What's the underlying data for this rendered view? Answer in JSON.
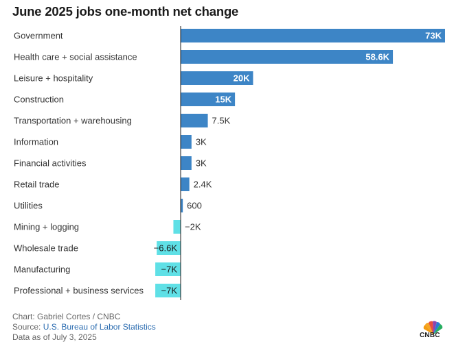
{
  "chart_data": {
    "type": "bar",
    "orientation": "horizontal",
    "title": "June 2025 jobs one-month net change",
    "categories": [
      "Government",
      "Health care + social assistance",
      "Leisure + hospitality",
      "Construction",
      "Transportation + warehousing",
      "Information",
      "Financial activities",
      "Retail trade",
      "Utilities",
      "Mining + logging",
      "Wholesale trade",
      "Manufacturing",
      "Professional + business services"
    ],
    "values": [
      73000,
      58600,
      20000,
      15000,
      7500,
      3000,
      3000,
      2400,
      600,
      -2000,
      -6600,
      -7000,
      -7000
    ],
    "value_labels": [
      "73K",
      "58.6K",
      "20K",
      "15K",
      "7.5K",
      "3K",
      "3K",
      "2.4K",
      "600",
      "−2K",
      "−6.6K",
      "−7K",
      "−7K"
    ],
    "xlim": [
      -8000,
      73000
    ],
    "positive_color": "#3d85c6",
    "negative_color": "#5fe0e6",
    "xlabel": "",
    "ylabel": ""
  },
  "footer": {
    "credit": "Chart: Gabriel Cortes / CNBC",
    "source_prefix": "Source: ",
    "source_link": "U.S. Bureau of Labor Statistics",
    "date_note": "Data as of July 3, 2025"
  },
  "logo": {
    "icon": "peacock-logo-icon",
    "text": "CNBC"
  }
}
